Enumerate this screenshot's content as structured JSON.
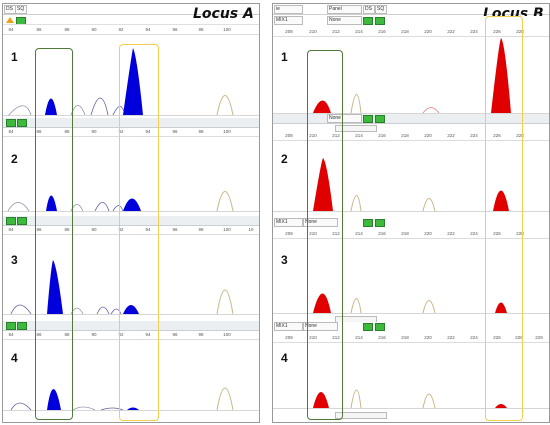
{
  "colors": {
    "locusA_peak": "#0000dd",
    "locusB_peak": "#e00000",
    "ghost_peak": "#b8a882",
    "green_box": "#4f7a3a",
    "yellow_box": "#f2cf4f",
    "button": "#3dba3d"
  },
  "locusA": {
    "title": "Locus A",
    "topbar": {
      "cells": [
        "DS",
        "SQ"
      ]
    },
    "axis_ticks": [
      "84",
      "86",
      "88",
      "90",
      "92",
      "94",
      "96",
      "98",
      "100",
      "10"
    ],
    "lanes": [
      {
        "number": "1",
        "axis_ticks": [
          "84",
          "86",
          "88",
          "90",
          "92",
          "94",
          "96",
          "98",
          "100"
        ]
      },
      {
        "number": "2",
        "axis_ticks": [
          "84",
          "86",
          "88",
          "90",
          "92",
          "94",
          "96",
          "98",
          "100"
        ]
      },
      {
        "number": "3",
        "axis_ticks": [
          "84",
          "86",
          "88",
          "90",
          "92",
          "94",
          "96",
          "98",
          "100",
          "10"
        ]
      },
      {
        "number": "4",
        "axis_ticks": [
          "84",
          "86",
          "88",
          "90",
          "92",
          "94",
          "96",
          "98",
          "100"
        ]
      }
    ]
  },
  "locusB": {
    "title": "Locus B",
    "topbar": {
      "cells": [
        "ie",
        "Panel",
        "DS",
        "SQ"
      ]
    },
    "toolrows": [
      {
        "id": "MIX1",
        "value": "None"
      },
      {
        "id": "",
        "value": "None"
      },
      {
        "id": "MIX1",
        "value": "None"
      },
      {
        "id": "MIX1",
        "value": "None"
      }
    ],
    "lanes": [
      {
        "number": "1",
        "axis_ticks": [
          "208",
          "210",
          "212",
          "214",
          "216",
          "218",
          "220",
          "222",
          "224",
          "226",
          "228"
        ]
      },
      {
        "number": "2",
        "axis_ticks": [
          "208",
          "210",
          "212",
          "214",
          "216",
          "218",
          "220",
          "222",
          "224",
          "226",
          "228"
        ]
      },
      {
        "number": "3",
        "axis_ticks": [
          "208",
          "210",
          "212",
          "214",
          "216",
          "218",
          "220",
          "222",
          "224",
          "226",
          "228"
        ]
      },
      {
        "number": "4",
        "axis_ticks": [
          "208",
          "210",
          "212",
          "214",
          "216",
          "218",
          "220",
          "222",
          "224",
          "226",
          "228",
          "229"
        ]
      }
    ]
  }
}
